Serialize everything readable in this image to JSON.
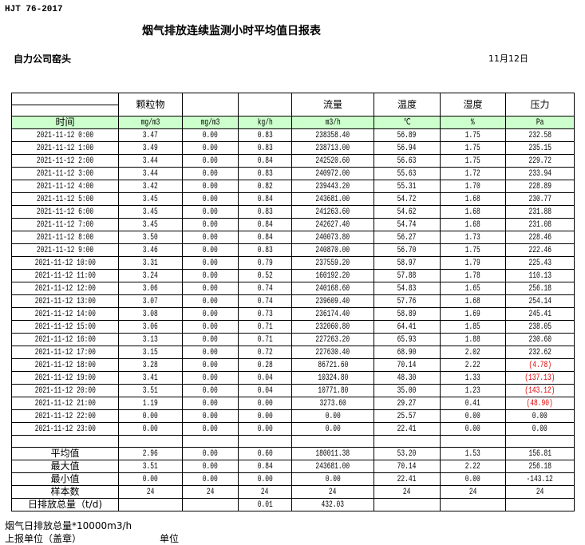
{
  "standard": "HJT  76-2017",
  "title": "烟气排放连续监测小时平均值日报表",
  "company": "自力公司窑头",
  "date": "11月12日",
  "columns": [
    "颗粒物",
    "",
    "",
    "流量",
    "温度",
    "湿度",
    "压力"
  ],
  "units": {
    "time": "时间",
    "values": [
      "mg/m3",
      "mg/m3",
      "kg/h",
      "m3/h",
      "℃",
      "%",
      "Pa"
    ]
  },
  "negative_color": "#e00000",
  "rows": [
    {
      "time": "2021-11-12 0:00",
      "v": [
        "3.47",
        "0.00",
        "0.83",
        "238358.40",
        "56.89",
        "1.75",
        "232.58"
      ]
    },
    {
      "time": "2021-11-12 1:00",
      "v": [
        "3.49",
        "0.00",
        "0.83",
        "238713.00",
        "56.94",
        "1.75",
        "235.15"
      ]
    },
    {
      "time": "2021-11-12 2:00",
      "v": [
        "3.44",
        "0.00",
        "0.84",
        "242520.60",
        "56.63",
        "1.75",
        "229.72"
      ]
    },
    {
      "time": "2021-11-12 3:00",
      "v": [
        "3.44",
        "0.00",
        "0.83",
        "240972.00",
        "55.63",
        "1.72",
        "233.94"
      ]
    },
    {
      "time": "2021-11-12 4:00",
      "v": [
        "3.42",
        "0.00",
        "0.82",
        "239443.20",
        "55.31",
        "1.70",
        "228.89"
      ]
    },
    {
      "time": "2021-11-12 5:00",
      "v": [
        "3.45",
        "0.00",
        "0.84",
        "243681.00",
        "54.72",
        "1.68",
        "230.77"
      ]
    },
    {
      "time": "2021-11-12 6:00",
      "v": [
        "3.45",
        "0.00",
        "0.83",
        "241263.60",
        "54.62",
        "1.68",
        "231.88"
      ]
    },
    {
      "time": "2021-11-12 7:00",
      "v": [
        "3.45",
        "0.00",
        "0.84",
        "242627.40",
        "54.74",
        "1.68",
        "231.08"
      ]
    },
    {
      "time": "2021-11-12 8:00",
      "v": [
        "3.50",
        "0.00",
        "0.84",
        "240073.80",
        "56.27",
        "1.73",
        "228.46"
      ]
    },
    {
      "time": "2021-11-12 9:00",
      "v": [
        "3.46",
        "0.00",
        "0.83",
        "240870.00",
        "56.70",
        "1.75",
        "222.46"
      ]
    },
    {
      "time": "2021-11-12 10:00",
      "v": [
        "3.31",
        "0.00",
        "0.79",
        "237559.20",
        "58.97",
        "1.79",
        "225.43"
      ]
    },
    {
      "time": "2021-11-12 11:00",
      "v": [
        "3.24",
        "0.00",
        "0.52",
        "160192.20",
        "57.88",
        "1.78",
        "110.13"
      ]
    },
    {
      "time": "2021-11-12 12:00",
      "v": [
        "3.06",
        "0.00",
        "0.74",
        "240168.60",
        "54.83",
        "1.65",
        "256.18"
      ]
    },
    {
      "time": "2021-11-12 13:00",
      "v": [
        "3.07",
        "0.00",
        "0.74",
        "239609.40",
        "57.76",
        "1.68",
        "254.14"
      ]
    },
    {
      "time": "2021-11-12 14:00",
      "v": [
        "3.08",
        "0.00",
        "0.73",
        "236174.40",
        "58.89",
        "1.69",
        "245.41"
      ]
    },
    {
      "time": "2021-11-12 15:00",
      "v": [
        "3.06",
        "0.00",
        "0.71",
        "232060.80",
        "64.41",
        "1.85",
        "238.05"
      ]
    },
    {
      "time": "2021-11-12 16:00",
      "v": [
        "3.13",
        "0.00",
        "0.71",
        "227263.20",
        "65.93",
        "1.88",
        "230.60"
      ]
    },
    {
      "time": "2021-11-12 17:00",
      "v": [
        "3.15",
        "0.00",
        "0.72",
        "227630.40",
        "68.90",
        "2.02",
        "232.62"
      ]
    },
    {
      "time": "2021-11-12 18:00",
      "v": [
        "3.28",
        "0.00",
        "0.28",
        "86721.60",
        "70.14",
        "2.22",
        "(4.78)"
      ]
    },
    {
      "time": "2021-11-12 19:00",
      "v": [
        "3.41",
        "0.00",
        "0.04",
        "10324.80",
        "48.30",
        "1.33",
        "(137.13)"
      ]
    },
    {
      "time": "2021-11-12 20:00",
      "v": [
        "3.51",
        "0.00",
        "0.04",
        "10771.80",
        "35.00",
        "1.23",
        "(143.12)"
      ]
    },
    {
      "time": "2021-11-12 21:00",
      "v": [
        "1.19",
        "0.00",
        "0.00",
        "3273.60",
        "29.27",
        "0.41",
        "(48.90)"
      ]
    },
    {
      "time": "2021-11-12 22:00",
      "v": [
        "0.00",
        "0.00",
        "0.00",
        "0.00",
        "25.57",
        "0.00",
        "0.00"
      ]
    },
    {
      "time": "2021-11-12 23:00",
      "v": [
        "0.00",
        "0.00",
        "0.00",
        "0.00",
        "22.41",
        "0.00",
        "0.00"
      ]
    }
  ],
  "stats": [
    {
      "label": "平均值",
      "v": [
        "2.96",
        "0.00",
        "0.60",
        "180011.38",
        "53.20",
        "1.53",
        "156.81"
      ]
    },
    {
      "label": "最大值",
      "v": [
        "3.51",
        "0.00",
        "0.84",
        "243681.00",
        "70.14",
        "2.22",
        "256.18"
      ]
    },
    {
      "label": "最小值",
      "v": [
        "0.00",
        "0.00",
        "0.00",
        "0.00",
        "22.41",
        "0.00",
        "-143.12"
      ]
    },
    {
      "label": "样本数",
      "v": [
        "24",
        "24",
        "24",
        "24",
        "24",
        "24",
        "24"
      ]
    },
    {
      "label": "日排放总量（t/d)",
      "v": [
        "",
        "",
        "0.01",
        "432.03",
        "",
        "",
        ""
      ]
    }
  ],
  "footer": {
    "note": "烟气日排放总量*10000m3/h",
    "unit_label": "上报单位（盖章）",
    "unit": "单位"
  }
}
